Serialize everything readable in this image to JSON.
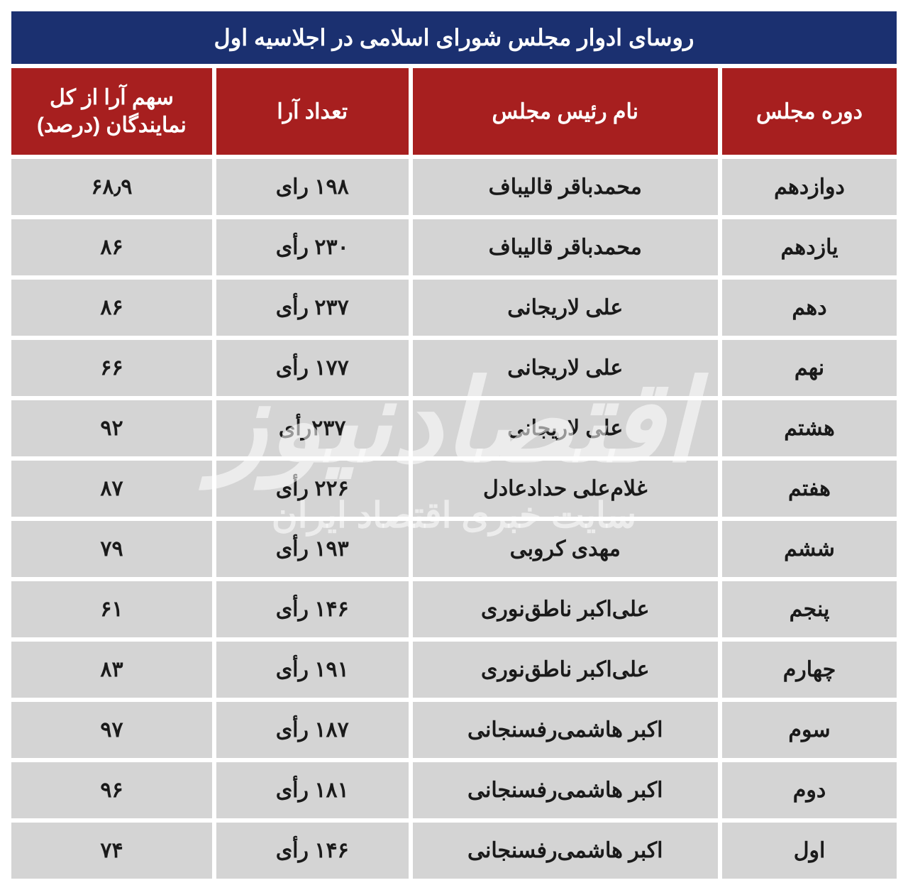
{
  "style": {
    "title_bg": "#1b3070",
    "title_fg": "#ffffff",
    "header_bg": "#a71f1f",
    "header_fg": "#ffffff",
    "row_bg": "#d4d4d4",
    "row_fg": "#1a1a1a",
    "title_fontsize": 32,
    "header_fontsize": 30,
    "cell_fontsize": 30,
    "cell_spacing": 6,
    "col_widths_pct": [
      20,
      35,
      22,
      23
    ]
  },
  "title": "روسای ادوار مجلس شورای اسلامی در اجلاسیه اول",
  "columns": {
    "period": "دوره مجلس",
    "name": "نام رئیس مجلس",
    "votes": "تعداد آرا",
    "share": "سهم آرا از کل نمایندگان (درصد)"
  },
  "rows": [
    {
      "period": "دوازدهم",
      "name": "محمدباقر قالیباف",
      "votes": "۱۹۸ رای",
      "share": "۶۸٫۹"
    },
    {
      "period": "یازدهم",
      "name": "محمدباقر قالیباف",
      "votes": "۲۳۰ رأی",
      "share": "۸۶"
    },
    {
      "period": "دهم",
      "name": "علی لاریجانی",
      "votes": "۲۳۷ رأی",
      "share": "۸۶"
    },
    {
      "period": "نهم",
      "name": "علی لاریجانی",
      "votes": "۱۷۷ رأی",
      "share": "۶۶"
    },
    {
      "period": "هشتم",
      "name": "علی لاریجانی",
      "votes": "۲۳۷رأی",
      "share": "۹۲"
    },
    {
      "period": "هفتم",
      "name": "غلام‌علی حدادعادل",
      "votes": "۲۲۶ رأی",
      "share": "۸۷"
    },
    {
      "period": "ششم",
      "name": "مهدی کروبی",
      "votes": "۱۹۳ رأی",
      "share": "۷۹"
    },
    {
      "period": "پنجم",
      "name": "علی‌اکبر ناطق‌نوری",
      "votes": "۱۴۶ رأی",
      "share": "۶۱"
    },
    {
      "period": "چهارم",
      "name": "علی‌اکبر ناطق‌نوری",
      "votes": "۱۹۱ رأی",
      "share": "۸۳"
    },
    {
      "period": "سوم",
      "name": "اکبر هاشمی‌رفسنجانی",
      "votes": "۱۸۷ رأی",
      "share": "۹۷"
    },
    {
      "period": "دوم",
      "name": "اکبر هاشمی‌رفسنجانی",
      "votes": "۱۸۱ رأی",
      "share": "۹۶"
    },
    {
      "period": "اول",
      "name": "اکبر هاشمی‌رفسنجانی",
      "votes": "۱۴۶ رأی",
      "share": "۷۴"
    }
  ],
  "watermark": {
    "line1": "اقتصادنیوز",
    "line2": "سایت خبری اقتصاد ایران"
  }
}
